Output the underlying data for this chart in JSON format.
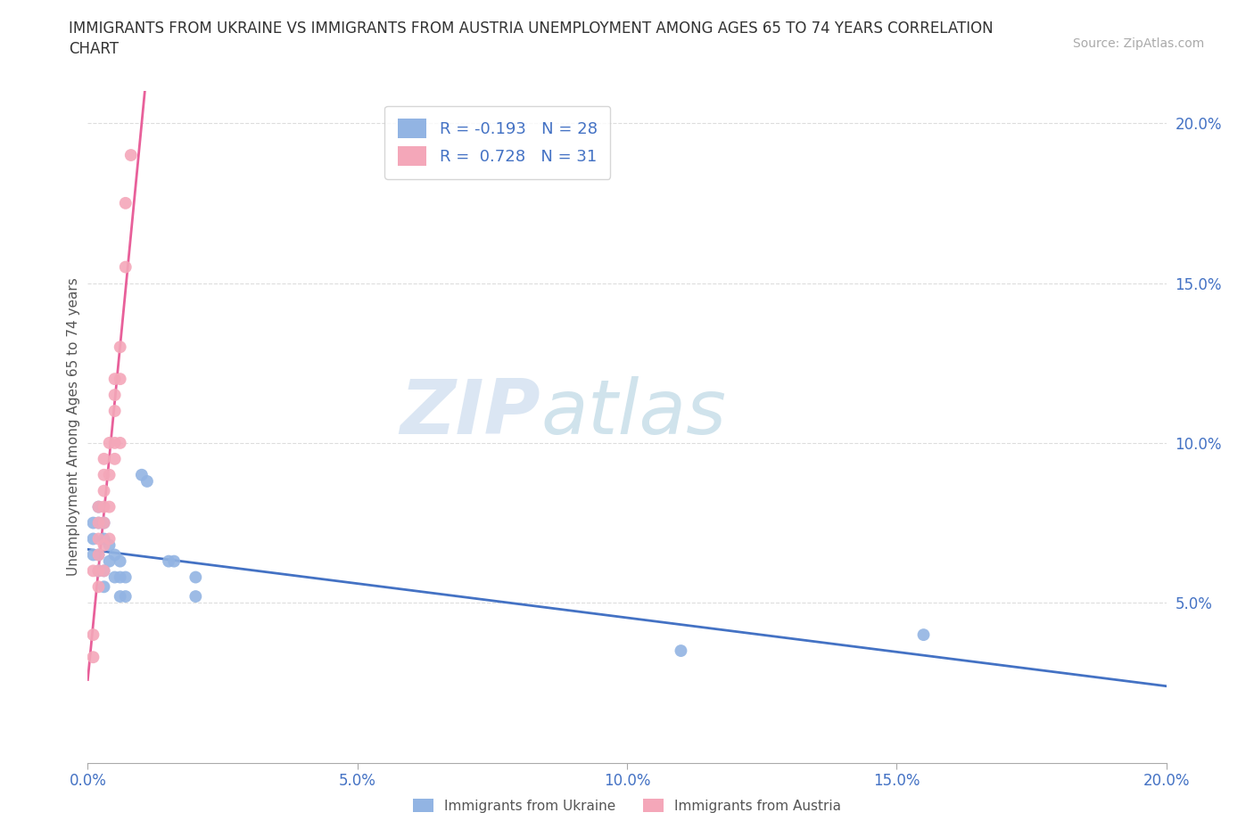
{
  "title_line1": "IMMIGRANTS FROM UKRAINE VS IMMIGRANTS FROM AUSTRIA UNEMPLOYMENT AMONG AGES 65 TO 74 YEARS CORRELATION",
  "title_line2": "CHART",
  "source": "Source: ZipAtlas.com",
  "ylabel": "Unemployment Among Ages 65 to 74 years",
  "xlim": [
    0.0,
    0.2
  ],
  "ylim": [
    0.0,
    0.21
  ],
  "yticks": [
    0.05,
    0.1,
    0.15,
    0.2
  ],
  "xticks": [
    0.0,
    0.05,
    0.1,
    0.15,
    0.2
  ],
  "ukraine_color": "#92b4e3",
  "austria_color": "#f4a7b9",
  "ukraine_line_color": "#4472c4",
  "austria_line_color": "#e8609a",
  "ukraine_R": -0.193,
  "ukraine_N": 28,
  "austria_R": 0.728,
  "austria_N": 31,
  "watermark_zip": "ZIP",
  "watermark_atlas": "atlas",
  "ukraine_x": [
    0.001,
    0.001,
    0.001,
    0.002,
    0.002,
    0.002,
    0.002,
    0.003,
    0.003,
    0.003,
    0.003,
    0.004,
    0.004,
    0.005,
    0.005,
    0.006,
    0.006,
    0.006,
    0.007,
    0.007,
    0.01,
    0.011,
    0.015,
    0.016,
    0.02,
    0.02,
    0.155,
    0.11
  ],
  "ukraine_y": [
    0.075,
    0.07,
    0.065,
    0.08,
    0.075,
    0.065,
    0.06,
    0.075,
    0.07,
    0.06,
    0.055,
    0.068,
    0.063,
    0.065,
    0.058,
    0.063,
    0.058,
    0.052,
    0.058,
    0.052,
    0.09,
    0.088,
    0.063,
    0.063,
    0.058,
    0.052,
    0.04,
    0.035
  ],
  "austria_x": [
    0.001,
    0.001,
    0.002,
    0.002,
    0.002,
    0.002,
    0.002,
    0.002,
    0.003,
    0.003,
    0.003,
    0.003,
    0.003,
    0.003,
    0.003,
    0.004,
    0.004,
    0.004,
    0.004,
    0.005,
    0.005,
    0.005,
    0.005,
    0.005,
    0.006,
    0.006,
    0.006,
    0.007,
    0.007,
    0.008,
    0.001
  ],
  "austria_y": [
    0.04,
    0.06,
    0.055,
    0.06,
    0.065,
    0.07,
    0.075,
    0.08,
    0.06,
    0.068,
    0.075,
    0.08,
    0.085,
    0.09,
    0.095,
    0.07,
    0.08,
    0.09,
    0.1,
    0.095,
    0.1,
    0.11,
    0.115,
    0.12,
    0.1,
    0.12,
    0.13,
    0.155,
    0.175,
    0.19,
    0.033
  ],
  "background_color": "#ffffff",
  "grid_color": "#dddddd"
}
